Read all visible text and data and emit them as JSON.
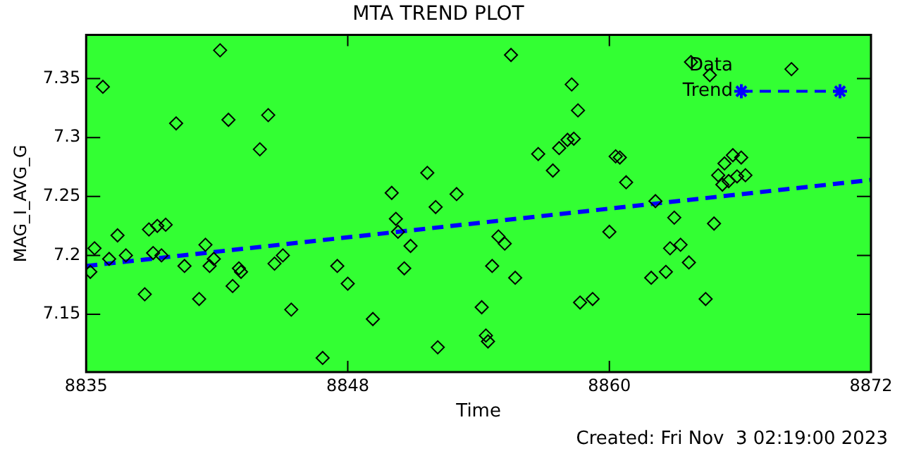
{
  "chart_data": {
    "type": "scatter",
    "title": "MTA TREND PLOT",
    "xlabel": "Time",
    "ylabel": "MAG_I_AVG_G",
    "annotations": [
      "Created: Fri Nov  3 02:19:00 2023"
    ],
    "xlim": [
      8835,
      8872.5
    ],
    "xticks": [
      8835,
      {
        "value": 8847.5,
        "label": "8848"
      },
      8860,
      {
        "value": 8872.5,
        "label": "8872"
      }
    ],
    "ylim": [
      7.101,
      7.387
    ],
    "yticks": [
      7.15,
      7.2,
      7.25,
      7.3,
      7.35
    ],
    "grid": false,
    "legend": "top right",
    "marker": "diamond",
    "series": [
      {
        "name": "Data",
        "color": "#000000",
        "x": [
          8835.2,
          8835.4,
          8835.8,
          8836.1,
          8836.5,
          8836.9,
          8837.8,
          8838.0,
          8838.4,
          8838.8,
          8838.2,
          8838.6,
          8839.3,
          8839.7,
          8840.4,
          8840.7,
          8840.9,
          8841.1,
          8841.4,
          8841.8,
          8842.0,
          8842.3,
          8842.4,
          8843.3,
          8843.7,
          8844.0,
          8844.4,
          8844.8,
          8846.3,
          8847.0,
          8847.5,
          8848.7,
          8849.6,
          8849.8,
          8849.9,
          8850.2,
          8850.5,
          8851.3,
          8851.7,
          8851.8,
          8852.7,
          8853.9,
          8854.1,
          8854.2,
          8854.4,
          8854.7,
          8855.0,
          8855.3,
          8855.5,
          8856.6,
          8857.3,
          8857.6,
          8858.0,
          8858.3,
          8858.2,
          8858.5,
          8858.6,
          8859.2,
          8860.0,
          8860.3,
          8860.5,
          8860.8,
          8862.0,
          8862.7,
          8862.9,
          8863.4,
          8863.8,
          8863.1,
          8862.2,
          8863.9,
          8864.8,
          8864.6,
          8865.0,
          8865.2,
          8865.5,
          8865.4,
          8865.7,
          8865.9,
          8866.1,
          8866.3,
          8866.5,
          8868.7
        ],
        "values": [
          7.186,
          7.206,
          7.343,
          7.197,
          7.217,
          7.2,
          7.167,
          7.222,
          7.225,
          7.226,
          7.202,
          7.2,
          7.312,
          7.191,
          7.163,
          7.209,
          7.191,
          7.197,
          7.374,
          7.315,
          7.174,
          7.189,
          7.186,
          7.29,
          7.319,
          7.193,
          7.2,
          7.154,
          7.113,
          7.191,
          7.176,
          7.146,
          7.253,
          7.231,
          7.22,
          7.189,
          7.208,
          7.27,
          7.241,
          7.122,
          7.252,
          7.156,
          7.132,
          7.127,
          7.191,
          7.216,
          7.21,
          7.37,
          7.181,
          7.286,
          7.272,
          7.291,
          7.298,
          7.299,
          7.345,
          7.323,
          7.16,
          7.163,
          7.22,
          7.284,
          7.283,
          7.262,
          7.181,
          7.186,
          7.206,
          7.209,
          7.194,
          7.232,
          7.246,
          7.364,
          7.353,
          7.163,
          7.227,
          7.268,
          7.278,
          7.26,
          7.263,
          7.285,
          7.267,
          7.283,
          7.268,
          7.358
        ]
      },
      {
        "name": "Trend",
        "type": "line",
        "color": "#0000ff",
        "marker": "none",
        "line_style": "dashed",
        "x": [
          8835,
          8872.5
        ],
        "values": [
          7.191,
          7.264
        ]
      }
    ]
  }
}
